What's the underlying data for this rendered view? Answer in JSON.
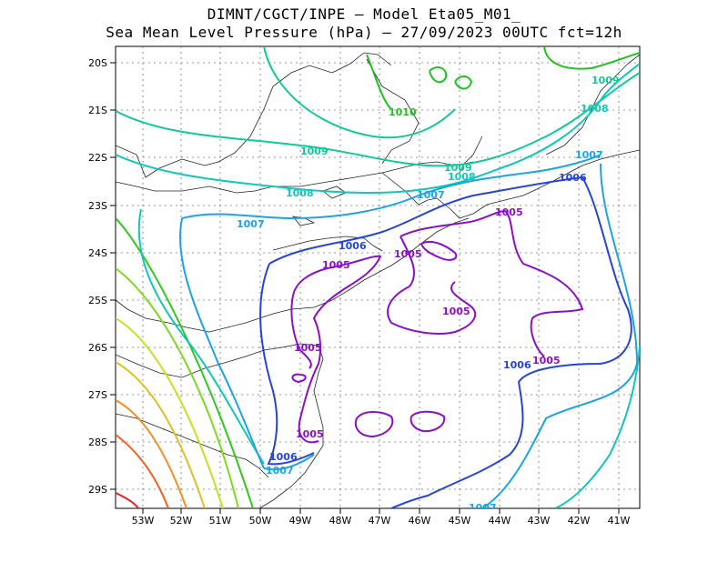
{
  "title": {
    "line1": "DIMNT/CGCT/INPE –  Model Eta05_M01_",
    "line2": "Sea Mean Level Pressure (hPa) – 27/09/2023 00UTC fct=12h"
  },
  "axes": {
    "lat_labels": [
      "20S",
      "21S",
      "22S",
      "23S",
      "24S",
      "25S",
      "26S",
      "27S",
      "28S",
      "29S"
    ],
    "lon_labels": [
      "53W",
      "52W",
      "51W",
      "50W",
      "49W",
      "48W",
      "47W",
      "46W",
      "45W",
      "44W",
      "43W",
      "42W",
      "41W"
    ]
  },
  "contour_labels": [
    {
      "text": "1010",
      "color": "#22c022"
    },
    {
      "text": "1009",
      "color": "#13c898"
    },
    {
      "text": "1009",
      "color": "#13c898"
    },
    {
      "text": "1009",
      "color": "#13c898"
    },
    {
      "text": "1008",
      "color": "#12c6b8"
    },
    {
      "text": "1008",
      "color": "#12c6b8"
    },
    {
      "text": "1008",
      "color": "#12c6b8"
    },
    {
      "text": "1007",
      "color": "#1ba4e0"
    },
    {
      "text": "1007",
      "color": "#1ba4e0"
    },
    {
      "text": "1007",
      "color": "#1ba4e0"
    },
    {
      "text": "1007",
      "color": "#1ba4e0"
    },
    {
      "text": "1007",
      "color": "#1ba4e0"
    },
    {
      "text": "1006",
      "color": "#2844d8"
    },
    {
      "text": "1006",
      "color": "#2844d8"
    },
    {
      "text": "1006",
      "color": "#2844d8"
    },
    {
      "text": "1006",
      "color": "#2844d8"
    },
    {
      "text": "1005",
      "color": "#8a10c8"
    },
    {
      "text": "1005",
      "color": "#8a10c8"
    },
    {
      "text": "1005",
      "color": "#8a10c8"
    },
    {
      "text": "1005",
      "color": "#8a10c8"
    },
    {
      "text": "1005",
      "color": "#8a10c8"
    },
    {
      "text": "1005",
      "color": "#8a10c8"
    },
    {
      "text": "1005",
      "color": "#8a10c8"
    }
  ]
}
